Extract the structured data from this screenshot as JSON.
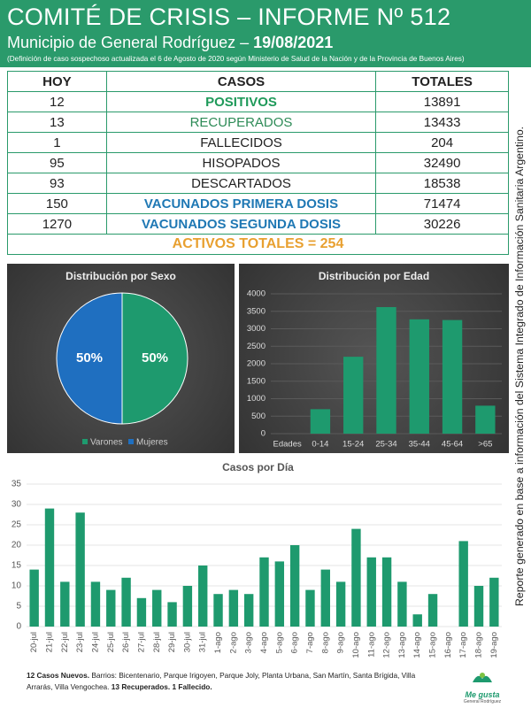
{
  "header": {
    "title": "COMITÉ DE CRISIS – INFORME Nº 512",
    "subtitle": "Municipio de General Rodríguez – ",
    "date": "19/08/2021",
    "note": "(Definición de caso sospechoso actualizada el 6 de Agosto de 2020 según Ministerio de Salud de la Nación y de la Provincia de Buenos Aires)"
  },
  "table": {
    "headers": [
      "HOY",
      "CASOS",
      "TOTALES"
    ],
    "rows": [
      {
        "hoy": 12,
        "caso": "POSITIVOS",
        "total": 13891,
        "color": "#1f9a5a",
        "bold": true
      },
      {
        "hoy": 13,
        "caso": "RECUPERADOS",
        "total": 13433,
        "color": "#2e8b57",
        "bold": false
      },
      {
        "hoy": 1,
        "caso": "FALLECIDOS",
        "total": 204,
        "color": "#222222",
        "bold": false
      },
      {
        "hoy": 95,
        "caso": "HISOPADOS",
        "total": 32490,
        "color": "#222222",
        "bold": false
      },
      {
        "hoy": 93,
        "caso": "DESCARTADOS",
        "total": 18538,
        "color": "#222222",
        "bold": false
      },
      {
        "hoy": 150,
        "caso": "VACUNADOS PRIMERA DOSIS",
        "total": 71474,
        "color": "#1f78b4",
        "bold": true
      },
      {
        "hoy": 1270,
        "caso": "VACUNADOS SEGUNDA DOSIS",
        "total": 30226,
        "color": "#1f78b4",
        "bold": true
      }
    ],
    "summary": "ACTIVOS TOTALES = 254",
    "summary_color": "#e8a030"
  },
  "side_note": "Reporte generado en base a información del Sistema Integrado de Información Sanitaria Argentino.",
  "chart_data": [
    {
      "type": "pie",
      "title": "Distribución  por Sexo",
      "categories": [
        "Varones",
        "Mujeres"
      ],
      "values": [
        50,
        50
      ],
      "value_labels": [
        "50%",
        "50%"
      ],
      "colors": [
        "#1e9a6e",
        "#1f6fc0"
      ]
    },
    {
      "type": "bar",
      "title": "Distribución  por Edad",
      "categories": [
        "Edades",
        "0-14",
        "15-24",
        "25-34",
        "35-44",
        "45-64",
        ">65"
      ],
      "values": [
        null,
        700,
        2200,
        3620,
        3270,
        3250,
        800
      ],
      "color": "#1e9a6e",
      "ylim": [
        0,
        4000
      ],
      "yticks": [
        0,
        500,
        1000,
        1500,
        2000,
        2500,
        3000,
        3500,
        4000
      ],
      "grid": true
    },
    {
      "type": "bar",
      "title": "Casos por Día",
      "categories": [
        "20-jul",
        "21-jul",
        "22-jul",
        "23-jul",
        "24-jul",
        "25-jul",
        "26-jul",
        "27-jul",
        "28-jul",
        "29-jul",
        "30-jul",
        "31-jul",
        "1-ago",
        "2-ago",
        "3-ago",
        "4-ago",
        "5-ago",
        "6-ago",
        "7-ago",
        "8-ago",
        "9-ago",
        "10-ago",
        "11-ago",
        "12-ago",
        "13-ago",
        "14-ago",
        "15-ago",
        "16-ago",
        "17-ago",
        "18-ago",
        "19-ago"
      ],
      "values": [
        14,
        29,
        11,
        28,
        11,
        9,
        12,
        7,
        9,
        6,
        10,
        15,
        8,
        9,
        8,
        17,
        16,
        20,
        9,
        14,
        11,
        24,
        17,
        17,
        11,
        3,
        8,
        0,
        21,
        10,
        12
      ],
      "color": "#1e9a6e",
      "ylim": [
        0,
        35
      ],
      "yticks": [
        0,
        5,
        10,
        15,
        20,
        25,
        30,
        35
      ],
      "grid": true
    }
  ],
  "footer": {
    "new_cases": "12 Casos Nuevos.",
    "barrios": " Barrios: Bicentenario, Parque Irigoyen, Parque Joly, Planta Urbana, San Martín, Santa Brígida, Villa Arrarás, Villa Vengochea. ",
    "recovered": "13 Recuperados.",
    "deaths": " 1 Fallecido."
  },
  "logo": {
    "name": "Me gusta",
    "place": "General Rodríguez"
  }
}
